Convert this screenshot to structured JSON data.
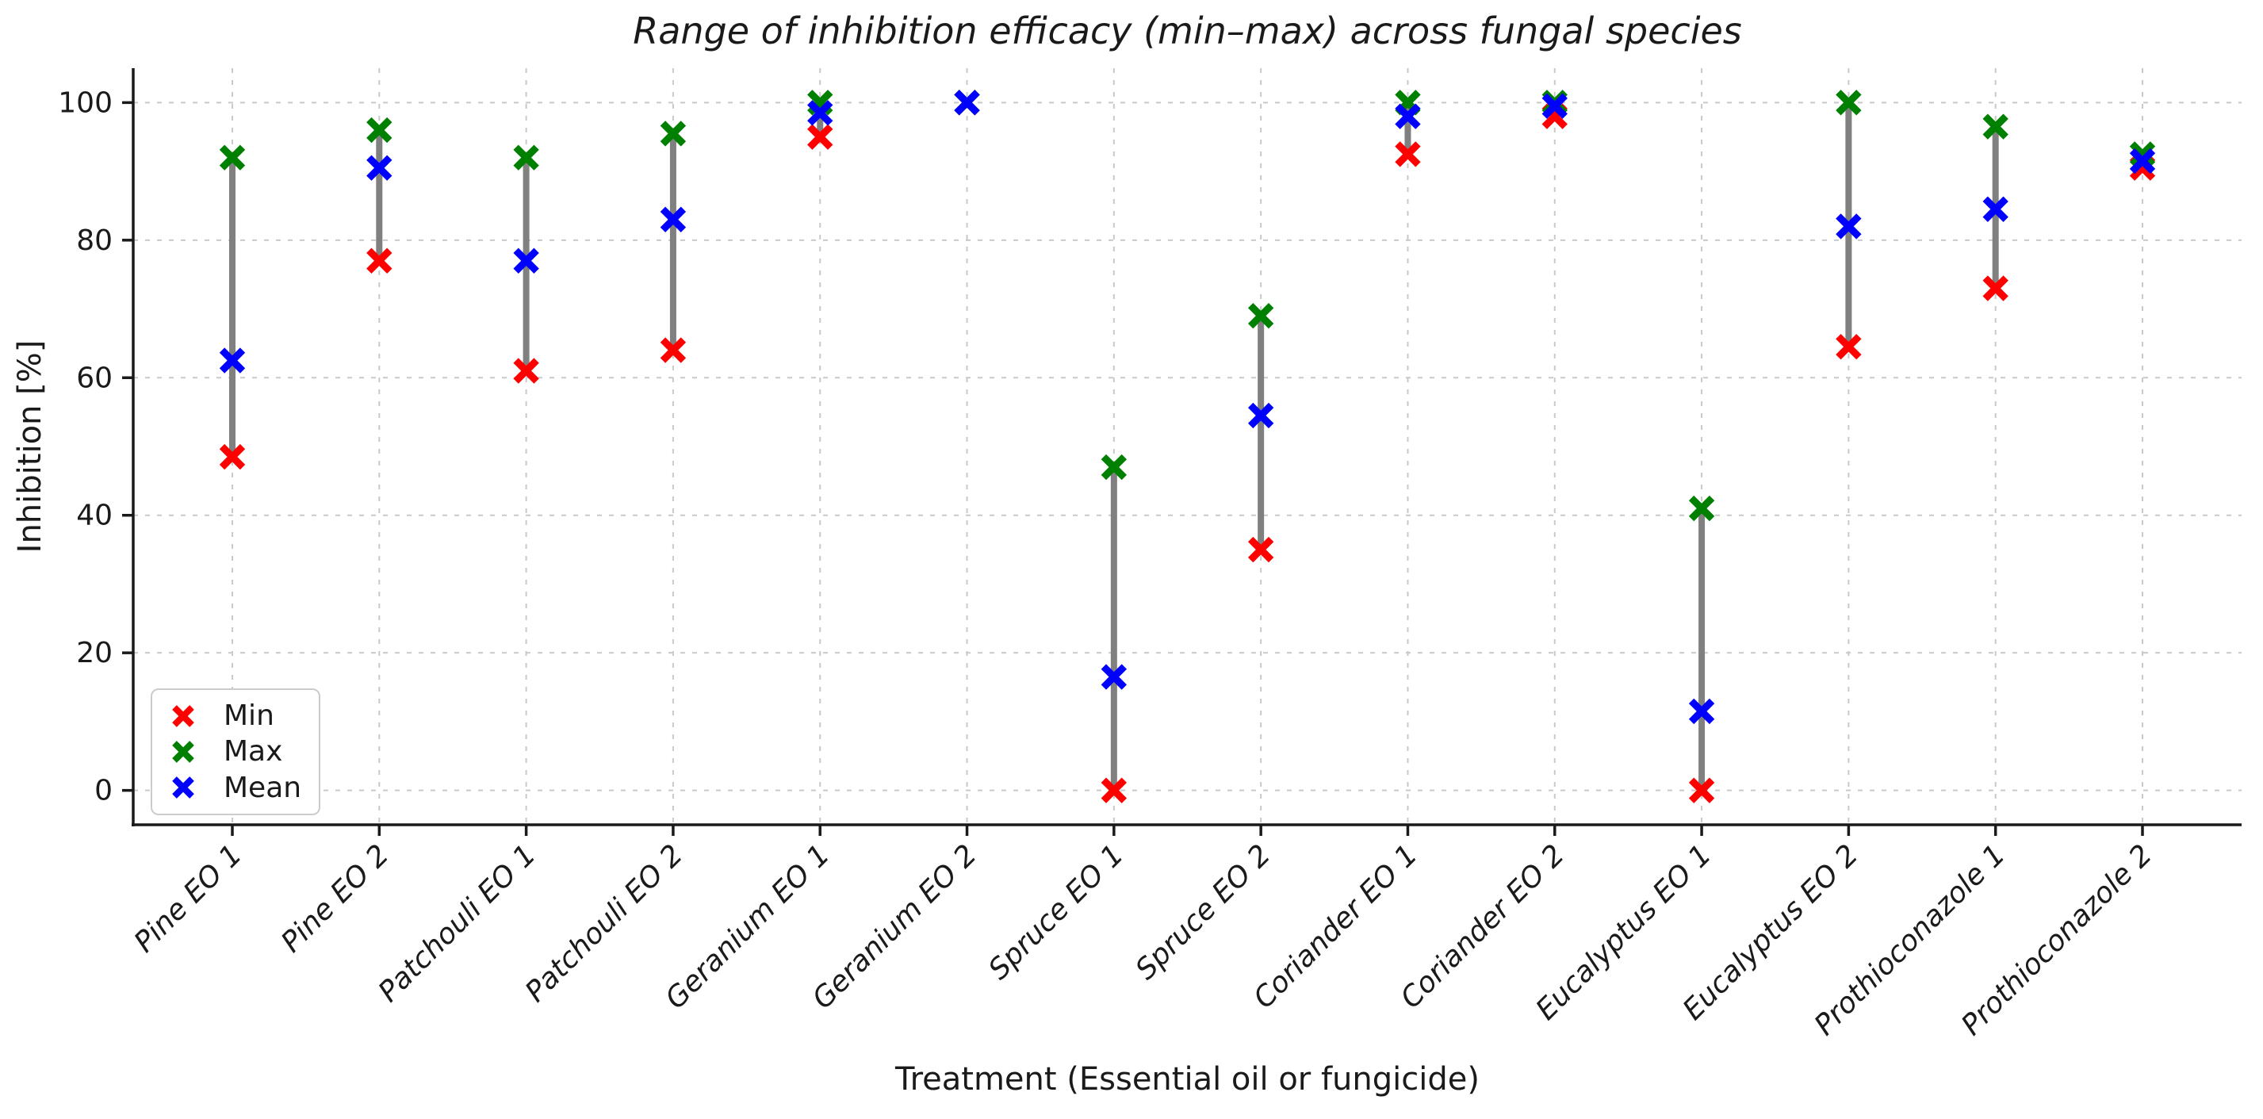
{
  "figure": {
    "background": "#ffffff",
    "text_color": "#1a1a1a"
  },
  "chart_data": {
    "type": "scatter",
    "title": "Range of inhibition efficacy (min–max) across fungal species",
    "xlabel": "Treatment (Essential oil or fungicide)",
    "ylabel": "Inhibition [%]",
    "ylim": [
      -5,
      105
    ],
    "yticks": [
      0,
      20,
      40,
      60,
      80,
      100
    ],
    "grid": true,
    "grid_color": "#c9c9c9",
    "grid_style": "dashed",
    "range_line_color": "#808080",
    "spine_color": "#1a1a1a",
    "legend_position": "lower left",
    "categories": [
      "Pine EO 1",
      "Pine EO 2",
      "Patchouli EO 1",
      "Patchouli EO 2",
      "Geranium EO 1",
      "Geranium EO 2",
      "Spruce EO 1",
      "Spruce EO 2",
      "Coriander EO 1",
      "Coriander EO 2",
      "Eucalyptus EO 1",
      "Eucalyptus EO 2",
      "Prothioconazole 1",
      "Prothioconazole 2"
    ],
    "series": [
      {
        "name": "Min",
        "color": "#ff0000",
        "marker": "x",
        "values": [
          48.5,
          77,
          61,
          64,
          95,
          100,
          0,
          35,
          92.5,
          98,
          0,
          64.5,
          73,
          90.5
        ]
      },
      {
        "name": "Max",
        "color": "#008000",
        "marker": "x",
        "values": [
          92,
          96,
          92,
          95.5,
          100,
          100,
          47,
          69,
          100,
          100,
          41,
          100,
          96.5,
          92.5
        ]
      },
      {
        "name": "Mean",
        "color": "#0000ff",
        "marker": "x",
        "values": [
          62.5,
          90.5,
          77,
          83,
          98.5,
          100,
          16.5,
          54.5,
          98,
          99.5,
          11.5,
          82,
          84.5,
          91.5
        ]
      }
    ]
  }
}
